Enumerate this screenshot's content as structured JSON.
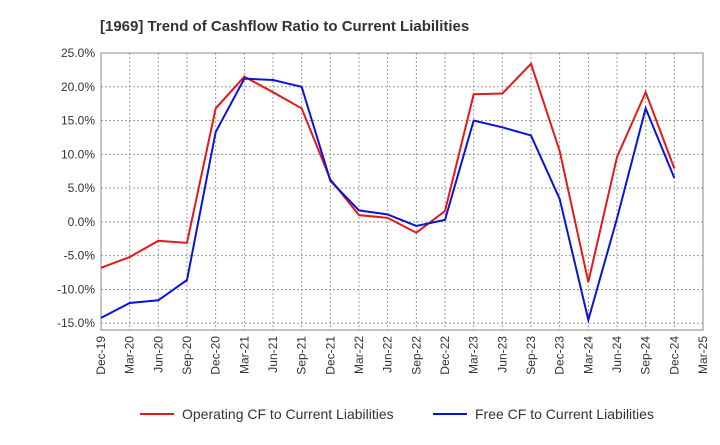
{
  "chart_data": {
    "type": "line",
    "title": "[1969]  Trend of Cashflow Ratio to Current Liabilities",
    "xlabel": "",
    "ylabel": "",
    "ylim": [
      -16,
      25
    ],
    "yticks": [
      25,
      20,
      15,
      10,
      5,
      0,
      -5,
      -10,
      -15
    ],
    "ytick_labels": [
      "25.0%",
      "20.0%",
      "15.0%",
      "10.0%",
      "5.0%",
      "0.0%",
      "-5.0%",
      "-10.0%",
      "-15.0%"
    ],
    "x_tick_labels": [
      "Dec-19",
      "Mar-20",
      "Jun-20",
      "Sep-20",
      "Dec-20",
      "Mar-21",
      "Jun-21",
      "Sep-21",
      "Dec-21",
      "Mar-22",
      "Jun-22",
      "Sep-22",
      "Dec-22",
      "Mar-23",
      "Jun-23",
      "Sep-23",
      "Dec-23",
      "Mar-24",
      "Jun-24",
      "Sep-24",
      "Dec-24",
      "Mar-25"
    ],
    "x": [
      "Dec-19",
      "Mar-20",
      "Jun-20",
      "Sep-20",
      "Dec-20",
      "Mar-21",
      "Jun-21",
      "Sep-21",
      "Dec-21",
      "Mar-22",
      "Jun-22",
      "Sep-22",
      "Dec-22",
      "Mar-23",
      "Jun-23",
      "Sep-23",
      "Dec-23",
      "Mar-24",
      "Jun-24",
      "Sep-24",
      "Dec-24"
    ],
    "grid": true,
    "legend_position": "bottom",
    "series": [
      {
        "name": "Operating CF to Current Liabilities",
        "color": "#e31a1c",
        "values": [
          -6.8,
          -5.2,
          -2.8,
          -3.1,
          16.8,
          21.5,
          19.2,
          16.8,
          6.3,
          1.0,
          0.6,
          -1.6,
          1.6,
          18.9,
          19.0,
          23.4,
          10.5,
          -8.9,
          9.6,
          19.2,
          7.9
        ]
      },
      {
        "name": "Free CF to Current Liabilities",
        "color": "#0a14d6",
        "values": [
          -14.2,
          -12.0,
          -11.6,
          -8.6,
          13.3,
          21.2,
          21.0,
          20.0,
          6.1,
          1.7,
          1.1,
          -0.6,
          0.3,
          15.0,
          14.0,
          12.8,
          3.4,
          -14.5,
          0.5,
          16.8,
          6.5
        ]
      }
    ]
  }
}
